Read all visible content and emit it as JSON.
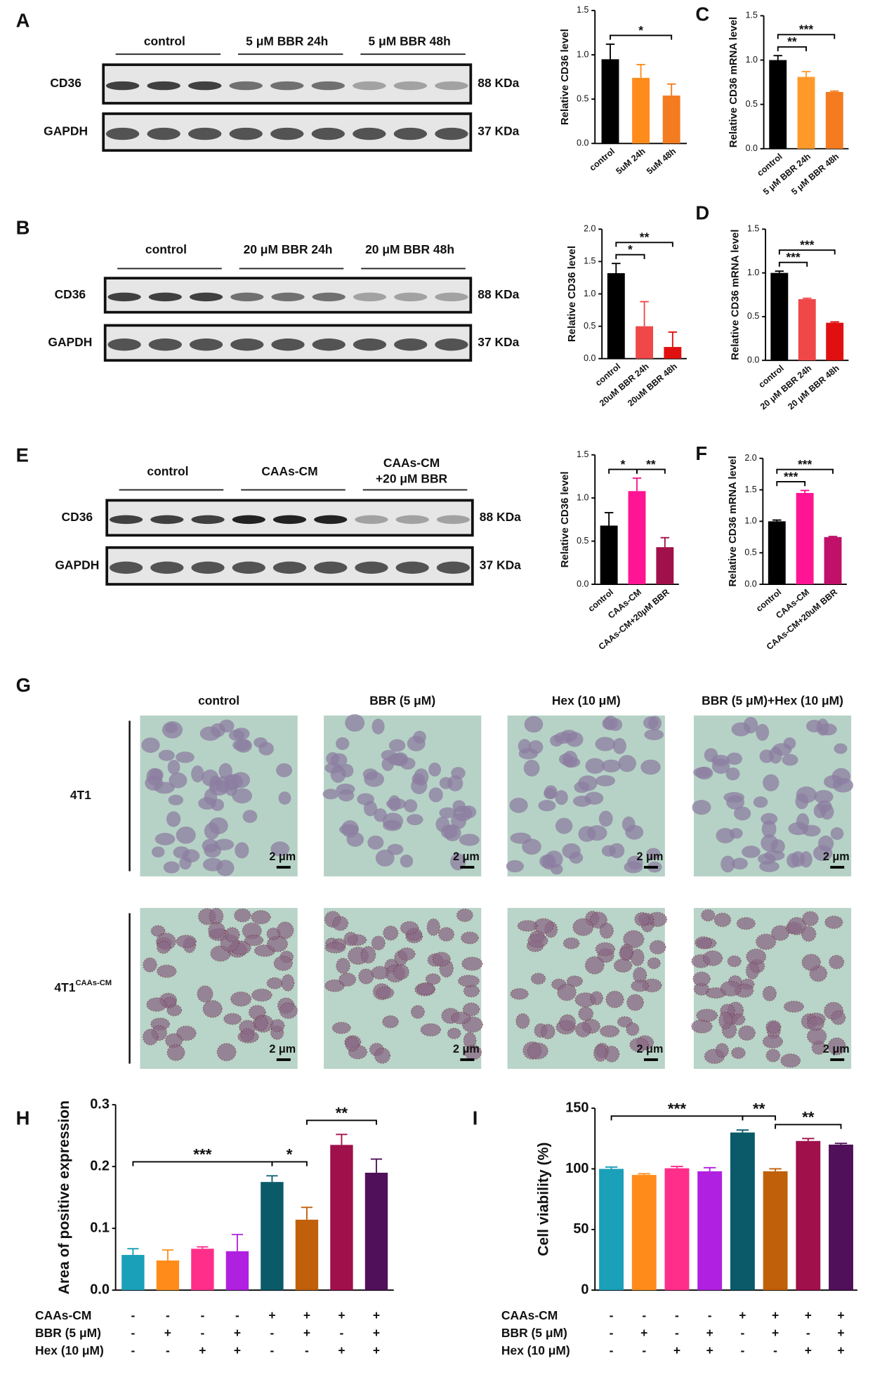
{
  "blots": [
    {
      "panel": "A",
      "groups": [
        "control",
        "5 μM BBR 24h",
        "5 μM BBR 48h"
      ],
      "rows": [
        {
          "name": "CD36",
          "size": "88 KDa"
        },
        {
          "name": "GAPDH",
          "size": "37 KDa"
        }
      ]
    },
    {
      "panel": "B",
      "groups": [
        "control",
        "20 μM BBR 24h",
        "20 μM BBR 48h"
      ],
      "rows": [
        {
          "name": "CD36",
          "size": "88 KDa"
        },
        {
          "name": "GAPDH",
          "size": "37 KDa"
        }
      ]
    },
    {
      "panel": "E",
      "groups": [
        "control",
        "CAAs-CM",
        "CAAs-CM\n+20 μM BBR"
      ],
      "rows": [
        {
          "name": "CD36",
          "size": "88 KDa"
        },
        {
          "name": "GAPDH",
          "size": "37 KDa"
        }
      ]
    }
  ],
  "micrographs": {
    "panel": "G",
    "columns": [
      "control",
      "BBR (5 μM)",
      "Hex (10 μM)",
      "BBR (5 μM)+Hex (10 μM)"
    ],
    "rows": [
      {
        "name": "4T1"
      },
      {
        "name": "4T1",
        "superscript": "CAAs-CM"
      }
    ],
    "scale_bar": "2 μm"
  },
  "chart_data": [
    {
      "type": "bar",
      "y_label": "Relative CD36 level",
      "categories": [
        "control",
        "5uM 24h",
        "5uM 48h"
      ],
      "values": [
        0.95,
        0.74,
        0.54
      ],
      "errors": [
        0.17,
        0.15,
        0.13
      ],
      "colors": [
        "#000000",
        "#ff8c1a",
        "#f47b20"
      ],
      "ylim": [
        0,
        1.5
      ],
      "yticks": [
        {
          "value": 0,
          "label": "0.0"
        },
        {
          "value": 0.5,
          "label": "0.5"
        },
        {
          "value": 1,
          "label": "1.0"
        },
        {
          "value": 1.5,
          "label": "1.5"
        }
      ],
      "significance": [
        {
          "label": "*",
          "bars": [
            0,
            2
          ]
        }
      ]
    },
    {
      "type": "bar",
      "panel": "C",
      "y_label": "Relative CD36 mRNA level",
      "categories": [
        "control",
        "5 μM BBR 24h",
        "5 μM BBR 48h"
      ],
      "values": [
        1.0,
        0.81,
        0.64
      ],
      "errors": [
        0.05,
        0.06,
        0.01
      ],
      "colors": [
        "#000000",
        "#ff9a2a",
        "#f47b20"
      ],
      "ylim": [
        0,
        1.5
      ],
      "yticks": [
        {
          "value": 0,
          "label": "0.0"
        },
        {
          "value": 0.5,
          "label": "0.5"
        },
        {
          "value": 1,
          "label": "1.0"
        },
        {
          "value": 1.5,
          "label": "1.5"
        }
      ],
      "significance": [
        {
          "label": "**",
          "bars": [
            0,
            1
          ]
        },
        {
          "label": "***",
          "bars": [
            0,
            2
          ]
        }
      ]
    },
    {
      "type": "bar",
      "y_label": "Relative CD36 level",
      "categories": [
        "control",
        "20uM BBR 24h",
        "20uM BBR 48h"
      ],
      "values": [
        1.32,
        0.5,
        0.18
      ],
      "errors": [
        0.15,
        0.38,
        0.23
      ],
      "colors": [
        "#000000",
        "#f04848",
        "#e01010"
      ],
      "ylim": [
        0,
        2
      ],
      "yticks": [
        {
          "value": 0,
          "label": "0.0"
        },
        {
          "value": 0.5,
          "label": "0.5"
        },
        {
          "value": 1,
          "label": "1.0"
        },
        {
          "value": 1.5,
          "label": "1.5"
        },
        {
          "value": 2,
          "label": "2.0"
        }
      ],
      "significance": [
        {
          "label": "*",
          "bars": [
            0,
            1
          ]
        },
        {
          "label": "**",
          "bars": [
            0,
            2
          ]
        }
      ]
    },
    {
      "type": "bar",
      "panel": "D",
      "y_label": "Relative CD36 mRNA level",
      "categories": [
        "control",
        "20 μM BBR 24h",
        "20 μM BBR 48h"
      ],
      "values": [
        1.0,
        0.7,
        0.43
      ],
      "errors": [
        0.02,
        0.01,
        0.01
      ],
      "colors": [
        "#000000",
        "#f04848",
        "#e01010"
      ],
      "ylim": [
        0,
        1.5
      ],
      "yticks": [
        {
          "value": 0,
          "label": "0.0"
        },
        {
          "value": 0.5,
          "label": "0.5"
        },
        {
          "value": 1,
          "label": "1.0"
        },
        {
          "value": 1.5,
          "label": "1.5"
        }
      ],
      "significance": [
        {
          "label": "***",
          "bars": [
            0,
            1
          ]
        },
        {
          "label": "***",
          "bars": [
            0,
            2
          ]
        }
      ]
    },
    {
      "type": "bar",
      "y_label": "Relative CD36 level",
      "categories": [
        "control",
        "CAAs-CM",
        "CAAs-CM+20μM BBR"
      ],
      "values": [
        0.68,
        1.08,
        0.43
      ],
      "errors": [
        0.15,
        0.15,
        0.11
      ],
      "colors": [
        "#000000",
        "#ff1493",
        "#a0104a"
      ],
      "ylim": [
        0,
        1.5
      ],
      "yticks": [
        {
          "value": 0,
          "label": "0.0"
        },
        {
          "value": 0.5,
          "label": "0.5"
        },
        {
          "value": 1,
          "label": "1.0"
        },
        {
          "value": 1.5,
          "label": "1.5"
        }
      ],
      "significance": [
        {
          "label": "*",
          "bars": [
            0,
            1
          ]
        },
        {
          "label": "**",
          "bars": [
            1,
            2
          ]
        }
      ]
    },
    {
      "type": "bar",
      "panel": "F",
      "y_label": "Relative CD36 mRNA level",
      "categories": [
        "control",
        "CAAs-CM",
        "CAAs-CM+20uM BBR"
      ],
      "values": [
        1.0,
        1.45,
        0.75
      ],
      "errors": [
        0.02,
        0.04,
        0.01
      ],
      "colors": [
        "#000000",
        "#ff1493",
        "#c0106a"
      ],
      "ylim": [
        0,
        2
      ],
      "yticks": [
        {
          "value": 0,
          "label": "0.0"
        },
        {
          "value": 0.5,
          "label": "0.5"
        },
        {
          "value": 1,
          "label": "1.0"
        },
        {
          "value": 1.5,
          "label": "1.5"
        },
        {
          "value": 2,
          "label": "2.0"
        }
      ],
      "significance": [
        {
          "label": "***",
          "bars": [
            0,
            1
          ]
        },
        {
          "label": "***",
          "bars": [
            0,
            2
          ]
        }
      ]
    },
    {
      "type": "bar",
      "panel": "H",
      "y_label": "Area of positive expression",
      "categories": [
        null,
        null,
        null,
        null,
        null,
        null,
        null,
        null
      ],
      "values": [
        0.057,
        0.048,
        0.067,
        0.063,
        0.175,
        0.114,
        0.235,
        0.19
      ],
      "errors": [
        0.01,
        0.017,
        0.003,
        0.027,
        0.01,
        0.02,
        0.017,
        0.022
      ],
      "colors": [
        "#1aa0b8",
        "#ff8c1a",
        "#ff2e8a",
        "#b020e0",
        "#0a5a6a",
        "#c0600a",
        "#a0104a",
        "#50105a"
      ],
      "ylim": [
        0,
        0.3
      ],
      "yticks": [
        {
          "value": 0,
          "label": "0.0"
        },
        0.1,
        0.2,
        0.3
      ],
      "significance": [
        {
          "label": "***",
          "bars": [
            0,
            4
          ]
        },
        {
          "label": "*",
          "bars": [
            4,
            5
          ]
        },
        {
          "label": "**",
          "bars": [
            5,
            7
          ]
        }
      ],
      "conditions": [
        {
          "name": "CAAs-CM",
          "signs": [
            "-",
            "-",
            "-",
            "-",
            "+",
            "+",
            "+",
            "+"
          ]
        },
        {
          "name": "BBR (5 μM)",
          "signs": [
            "-",
            "+",
            "-",
            "+",
            "-",
            "+",
            "-",
            "+"
          ]
        },
        {
          "name": "Hex (10 μM)",
          "signs": [
            "-",
            "-",
            "+",
            "+",
            "-",
            "-",
            "+",
            "+"
          ]
        }
      ]
    },
    {
      "type": "bar",
      "panel": "I",
      "y_label": "Cell viability (%)",
      "categories": [
        null,
        null,
        null,
        null,
        null,
        null,
        null,
        null
      ],
      "values": [
        100,
        95,
        100.5,
        98,
        130,
        98,
        123,
        120
      ],
      "errors": [
        1.5,
        1,
        1.5,
        3,
        2,
        2,
        2,
        1
      ],
      "colors": [
        "#1aa0b8",
        "#ff8c1a",
        "#ff2e8a",
        "#b020e0",
        "#0a5a6a",
        "#c0600a",
        "#a0104a",
        "#50105a"
      ],
      "ylim": [
        0,
        150
      ],
      "yticks": [
        0,
        50,
        100,
        150
      ],
      "significance": [
        {
          "label": "***",
          "bars": [
            0,
            4
          ]
        },
        {
          "label": "**",
          "bars": [
            4,
            5
          ]
        },
        {
          "label": "**",
          "bars": [
            5,
            7
          ]
        }
      ],
      "conditions": [
        {
          "name": "CAAs-CM",
          "signs": [
            "-",
            "-",
            "-",
            "-",
            "+",
            "+",
            "+",
            "+"
          ]
        },
        {
          "name": "BBR (5 μM)",
          "signs": [
            "-",
            "+",
            "-",
            "+",
            "-",
            "+",
            "-",
            "+"
          ]
        },
        {
          "name": "Hex (10 μM)",
          "signs": [
            "-",
            "-",
            "+",
            "+",
            "-",
            "-",
            "+",
            "+"
          ]
        }
      ]
    }
  ]
}
